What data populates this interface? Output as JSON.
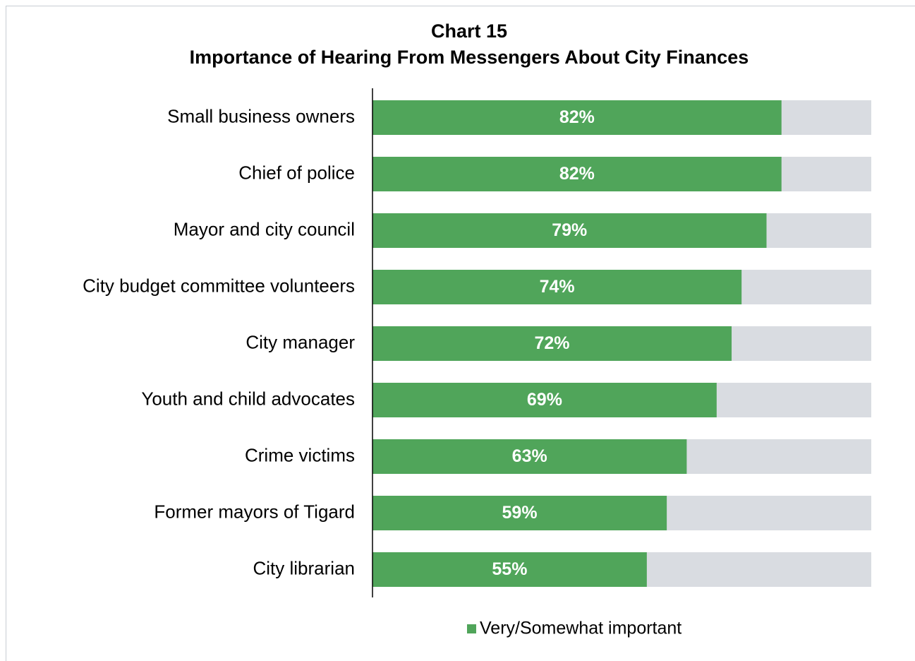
{
  "chart_data": {
    "type": "bar",
    "orientation": "horizontal",
    "title": "Chart 15",
    "subtitle": "Importance of Hearing From Messengers About City Finances",
    "categories": [
      "Small business owners",
      "Chief of police",
      "Mayor and city council",
      "City budget committee volunteers",
      "City manager",
      "Youth and child advocates",
      "Crime victims",
      "Former mayors of Tigard",
      "City librarian"
    ],
    "series": [
      {
        "name": "Very/Somewhat important",
        "color": "#50a55a",
        "values": [
          82,
          82,
          79,
          74,
          72,
          69,
          63,
          59,
          55
        ],
        "value_labels": [
          "82%",
          "82%",
          "79%",
          "74%",
          "72%",
          "69%",
          "63%",
          "59%",
          "55%"
        ]
      }
    ],
    "track_color": "#d9dce1",
    "xlim": [
      0,
      100
    ],
    "legend": "bottom"
  }
}
